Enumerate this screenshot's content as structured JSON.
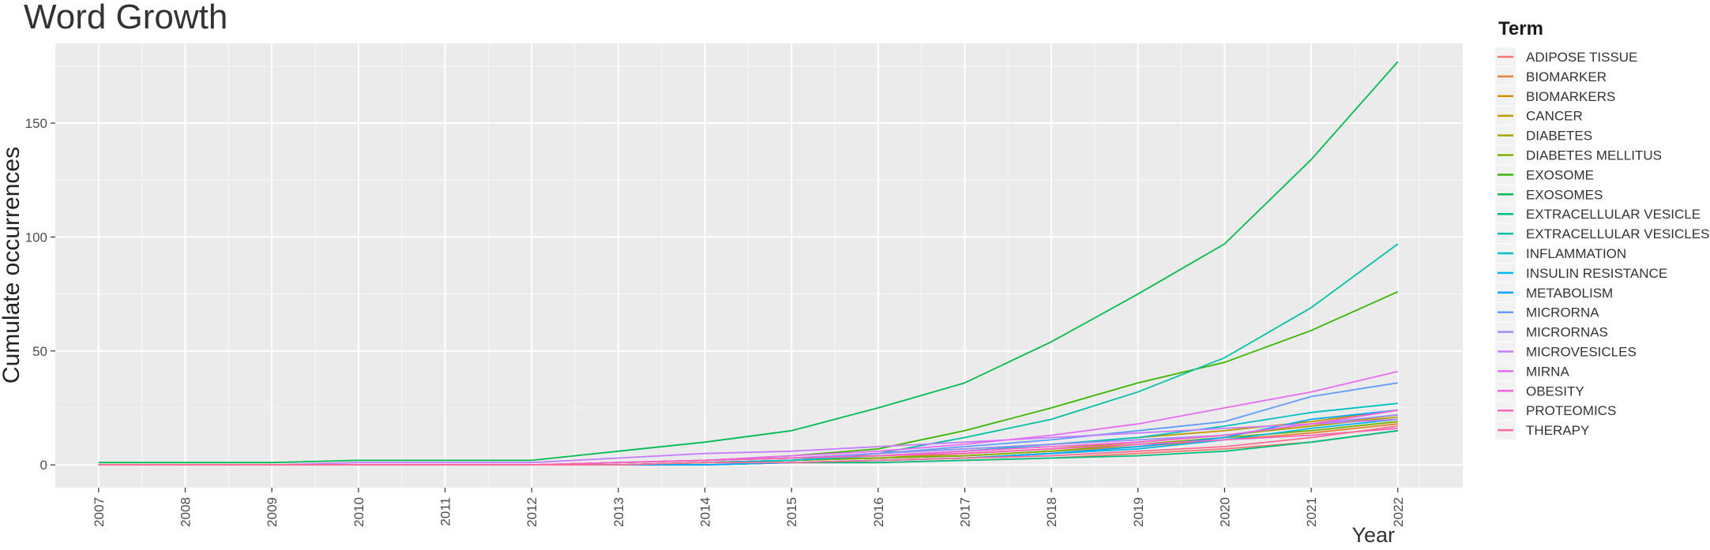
{
  "chart_data": {
    "type": "line",
    "title": "Word Growth",
    "xlabel": "Year",
    "ylabel": "Cumulate occurrences",
    "legend_title": "Term",
    "legend_position": "right",
    "grid": true,
    "x": [
      2007,
      2008,
      2009,
      2010,
      2011,
      2012,
      2013,
      2014,
      2015,
      2016,
      2017,
      2018,
      2019,
      2020,
      2021,
      2022
    ],
    "xlim": [
      2006.5,
      2022.75
    ],
    "ylim": [
      -10,
      185
    ],
    "yticks": [
      0,
      50,
      100,
      150
    ],
    "series": [
      {
        "name": "ADIPOSE TISSUE",
        "color": "#F8766D",
        "values": [
          0,
          0,
          0,
          0,
          0,
          0,
          0,
          0,
          1,
          1,
          2,
          3,
          5,
          7,
          10,
          15
        ]
      },
      {
        "name": "BIOMARKER",
        "color": "#EA8331",
        "values": [
          0,
          0,
          0,
          0,
          0,
          0,
          0,
          1,
          2,
          3,
          4,
          6,
          8,
          11,
          14,
          18
        ]
      },
      {
        "name": "BIOMARKERS",
        "color": "#D89000",
        "values": [
          0,
          0,
          0,
          0,
          0,
          0,
          0,
          1,
          2,
          3,
          5,
          7,
          10,
          13,
          17,
          22
        ]
      },
      {
        "name": "CANCER",
        "color": "#C09B00",
        "values": [
          0,
          0,
          0,
          0,
          0,
          0,
          1,
          2,
          3,
          5,
          7,
          9,
          12,
          15,
          19,
          24
        ]
      },
      {
        "name": "DIABETES",
        "color": "#A3A500",
        "values": [
          0,
          0,
          0,
          0,
          0,
          0,
          0,
          1,
          2,
          3,
          5,
          7,
          10,
          13,
          17,
          21
        ]
      },
      {
        "name": "DIABETES MELLITUS",
        "color": "#7CAE00",
        "values": [
          0,
          0,
          0,
          0,
          0,
          0,
          0,
          1,
          2,
          3,
          4,
          6,
          9,
          12,
          15,
          19
        ]
      },
      {
        "name": "EXOSOME",
        "color": "#39B600",
        "values": [
          0,
          0,
          0,
          0,
          0,
          0,
          1,
          2,
          4,
          7,
          15,
          25,
          36,
          45,
          59,
          76
        ]
      },
      {
        "name": "EXOSOMES",
        "color": "#00BB4E",
        "values": [
          1,
          1,
          1,
          2,
          2,
          2,
          6,
          10,
          15,
          25,
          36,
          54,
          75,
          97,
          134,
          177
        ]
      },
      {
        "name": "EXTRACELLULAR VESICLE",
        "color": "#00BF7D",
        "values": [
          0,
          0,
          0,
          0,
          0,
          0,
          0,
          0,
          1,
          1,
          2,
          3,
          4,
          6,
          10,
          15
        ]
      },
      {
        "name": "EXTRACELLULAR VESICLES",
        "color": "#00C1A3",
        "values": [
          0,
          0,
          0,
          0,
          0,
          0,
          0,
          1,
          2,
          5,
          12,
          20,
          32,
          47,
          69,
          97
        ]
      },
      {
        "name": "INFLAMMATION",
        "color": "#00BFC4",
        "values": [
          0,
          0,
          0,
          0,
          0,
          0,
          0,
          1,
          2,
          4,
          6,
          9,
          12,
          17,
          23,
          27
        ]
      },
      {
        "name": "INSULIN RESISTANCE",
        "color": "#00B8E7",
        "values": [
          0,
          0,
          0,
          0,
          0,
          0,
          0,
          0,
          1,
          2,
          3,
          5,
          7,
          11,
          16,
          20
        ]
      },
      {
        "name": "METABOLISM",
        "color": "#00A9FF",
        "values": [
          0,
          0,
          0,
          0,
          0,
          0,
          0,
          0,
          1,
          2,
          3,
          5,
          8,
          12,
          20,
          24
        ]
      },
      {
        "name": "MICRORNA",
        "color": "#619CFF",
        "values": [
          0,
          0,
          0,
          0,
          0,
          0,
          1,
          2,
          3,
          5,
          8,
          11,
          15,
          19,
          30,
          36
        ]
      },
      {
        "name": "MICRORNAS",
        "color": "#9590FF",
        "values": [
          0,
          0,
          0,
          0,
          0,
          0,
          1,
          2,
          3,
          5,
          7,
          9,
          11,
          13,
          18,
          22
        ]
      },
      {
        "name": "MICROVESICLES",
        "color": "#C77CFF",
        "values": [
          0,
          0,
          0,
          1,
          1,
          1,
          3,
          5,
          6,
          8,
          10,
          12,
          14,
          16,
          18,
          20
        ]
      },
      {
        "name": "MIRNA",
        "color": "#E76BF3",
        "values": [
          0,
          0,
          0,
          0,
          0,
          0,
          1,
          2,
          4,
          6,
          9,
          13,
          18,
          25,
          32,
          41
        ]
      },
      {
        "name": "OBESITY",
        "color": "#FA62DB",
        "values": [
          0,
          0,
          0,
          0,
          0,
          0,
          1,
          2,
          3,
          4,
          6,
          8,
          10,
          13,
          18,
          24
        ]
      },
      {
        "name": "PROTEOMICS",
        "color": "#FF62BC",
        "values": [
          0,
          0,
          0,
          0,
          0,
          0,
          1,
          2,
          3,
          4,
          5,
          7,
          9,
          11,
          13,
          16
        ]
      },
      {
        "name": "THERAPY",
        "color": "#FF6C91",
        "values": [
          0,
          0,
          0,
          0,
          0,
          0,
          0,
          1,
          1,
          2,
          3,
          4,
          6,
          8,
          12,
          17
        ]
      }
    ]
  }
}
